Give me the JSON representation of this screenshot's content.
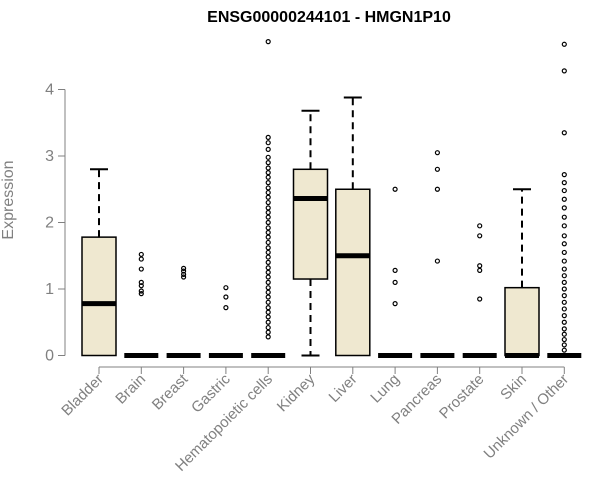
{
  "chart_data": {
    "type": "box",
    "title": "ENSG00000244101 - HMGN1P10",
    "xlabel": "",
    "ylabel": "Expression",
    "ylim": [
      0,
      4.8
    ],
    "yticks": [
      0,
      1,
      2,
      3,
      4
    ],
    "legend": "none",
    "grid": false,
    "colors": {
      "box_fill": "#efe8d0",
      "stroke": "#000000",
      "axis_text": "#808080"
    },
    "categories": [
      "Bladder",
      "Brain",
      "Breast",
      "Gastric",
      "Hematopoietic cells",
      "Kidney",
      "Liver",
      "Lung",
      "Pancreas",
      "Prostate",
      "Skin",
      "Unknown / Other"
    ],
    "boxes": [
      {
        "q1": 0.0,
        "median": 0.78,
        "q3": 1.78,
        "whisker_low": 0.0,
        "whisker_high": 2.8,
        "outliers": []
      },
      {
        "q1": 0.0,
        "median": 0.0,
        "q3": 0.0,
        "whisker_low": 0.0,
        "whisker_high": 0.0,
        "outliers": [
          0.93,
          0.97,
          1.05,
          1.1,
          1.3,
          1.45,
          1.52
        ]
      },
      {
        "q1": 0.0,
        "median": 0.0,
        "q3": 0.0,
        "whisker_low": 0.0,
        "whisker_high": 0.0,
        "outliers": [
          1.18,
          1.22,
          1.27,
          1.31
        ]
      },
      {
        "q1": 0.0,
        "median": 0.0,
        "q3": 0.0,
        "whisker_low": 0.0,
        "whisker_high": 0.0,
        "outliers": [
          0.72,
          0.88,
          1.02
        ]
      },
      {
        "q1": 0.0,
        "median": 0.0,
        "q3": 0.0,
        "whisker_low": 0.0,
        "whisker_high": 0.0,
        "outliers": [
          0.28,
          0.35,
          0.42,
          0.5,
          0.58,
          0.65,
          0.72,
          0.8,
          0.88,
          0.95,
          1.02,
          1.1,
          1.18,
          1.25,
          1.32,
          1.4,
          1.48,
          1.55,
          1.62,
          1.7,
          1.78,
          1.85,
          1.92,
          2.0,
          2.08,
          2.15,
          2.22,
          2.3,
          2.38,
          2.45,
          2.52,
          2.6,
          2.68,
          2.75,
          2.82,
          2.9,
          2.98,
          3.1,
          3.2,
          3.28,
          4.72
        ]
      },
      {
        "q1": 1.15,
        "median": 2.36,
        "q3": 2.8,
        "whisker_low": 0.0,
        "whisker_high": 3.68,
        "outliers": []
      },
      {
        "q1": 0.0,
        "median": 1.5,
        "q3": 2.5,
        "whisker_low": 0.0,
        "whisker_high": 3.88,
        "outliers": []
      },
      {
        "q1": 0.0,
        "median": 0.0,
        "q3": 0.0,
        "whisker_low": 0.0,
        "whisker_high": 0.0,
        "outliers": [
          0.78,
          1.1,
          1.28,
          2.5
        ]
      },
      {
        "q1": 0.0,
        "median": 0.0,
        "q3": 0.0,
        "whisker_low": 0.0,
        "whisker_high": 0.0,
        "outliers": [
          1.42,
          2.5,
          2.8,
          3.05
        ]
      },
      {
        "q1": 0.0,
        "median": 0.0,
        "q3": 0.0,
        "whisker_low": 0.0,
        "whisker_high": 0.0,
        "outliers": [
          0.85,
          1.28,
          1.35,
          1.8,
          1.95
        ]
      },
      {
        "q1": 0.0,
        "median": 0.0,
        "q3": 1.02,
        "whisker_low": 0.0,
        "whisker_high": 2.5,
        "outliers": []
      },
      {
        "q1": 0.0,
        "median": 0.0,
        "q3": 0.0,
        "whisker_low": 0.0,
        "whisker_high": 0.0,
        "outliers": [
          0.08,
          0.16,
          0.24,
          0.32,
          0.4,
          0.5,
          0.6,
          0.7,
          0.8,
          0.9,
          1.0,
          1.1,
          1.2,
          1.3,
          1.42,
          1.55,
          1.68,
          1.8,
          1.95,
          2.08,
          2.22,
          2.35,
          2.48,
          2.6,
          2.72,
          3.35,
          4.28,
          4.68
        ]
      }
    ]
  }
}
